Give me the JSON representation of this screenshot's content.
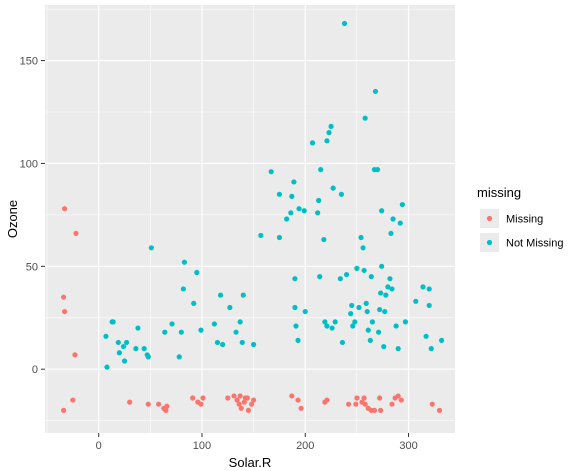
{
  "chart_data": {
    "type": "scatter",
    "xlabel": "Solar.R",
    "ylabel": "Ozone",
    "xlim": [
      -52,
      345
    ],
    "ylim": [
      -31,
      177
    ],
    "x_ticks": [
      0,
      100,
      200,
      300
    ],
    "y_ticks": [
      0,
      50,
      100,
      150
    ],
    "grid": true,
    "panel_background": "#ebebeb",
    "grid_color": "#ffffff",
    "legend": {
      "title": "missing",
      "position": "right"
    },
    "series": [
      {
        "name": "Missing",
        "color": "#F8766D",
        "points": [
          [
            -33,
            78
          ],
          [
            -22,
            66
          ],
          [
            -34,
            35
          ],
          [
            -33,
            28
          ],
          [
            -23,
            7
          ],
          [
            -34,
            -20
          ],
          [
            -25,
            -15
          ],
          [
            30,
            -16
          ],
          [
            48,
            -17
          ],
          [
            58,
            -17
          ],
          [
            63,
            -19
          ],
          [
            65,
            -20
          ],
          [
            66,
            -18
          ],
          [
            91,
            -14
          ],
          [
            96,
            -16
          ],
          [
            99,
            -17
          ],
          [
            101,
            -14
          ],
          [
            125,
            -14
          ],
          [
            131,
            -13
          ],
          [
            134,
            -15
          ],
          [
            136,
            -17
          ],
          [
            137,
            -13
          ],
          [
            138,
            -19
          ],
          [
            141,
            -16
          ],
          [
            142,
            -14
          ],
          [
            144,
            -14
          ],
          [
            145,
            -20
          ],
          [
            148,
            -17
          ],
          [
            150,
            -15
          ],
          [
            187,
            -13
          ],
          [
            193,
            -15
          ],
          [
            196,
            -19
          ],
          [
            219,
            -16
          ],
          [
            221,
            -15
          ],
          [
            242,
            -17
          ],
          [
            249,
            -17
          ],
          [
            250,
            -14
          ],
          [
            255,
            -16
          ],
          [
            257,
            -14
          ],
          [
            258,
            -17
          ],
          [
            261,
            -19
          ],
          [
            264,
            -20
          ],
          [
            267,
            -20
          ],
          [
            272,
            -14
          ],
          [
            273,
            -20
          ],
          [
            284,
            -17
          ],
          [
            287,
            -14
          ],
          [
            290,
            -13
          ],
          [
            293,
            -15
          ],
          [
            323,
            -17
          ],
          [
            330,
            -20
          ]
        ]
      },
      {
        "name": "Not Missing",
        "color": "#00BFC4",
        "points": [
          [
            7,
            16
          ],
          [
            8,
            1
          ],
          [
            13,
            23
          ],
          [
            14,
            23
          ],
          [
            19,
            13
          ],
          [
            20,
            8
          ],
          [
            24,
            11
          ],
          [
            25,
            4
          ],
          [
            27,
            13
          ],
          [
            36,
            10
          ],
          [
            38,
            20
          ],
          [
            44,
            10
          ],
          [
            47,
            7
          ],
          [
            48,
            6
          ],
          [
            51,
            59
          ],
          [
            64,
            18
          ],
          [
            71,
            22
          ],
          [
            78,
            6
          ],
          [
            80,
            18
          ],
          [
            82,
            39
          ],
          [
            83,
            52
          ],
          [
            92,
            32
          ],
          [
            95,
            47
          ],
          [
            99,
            19
          ],
          [
            112,
            22
          ],
          [
            115,
            13
          ],
          [
            118,
            36
          ],
          [
            120,
            12
          ],
          [
            127,
            30
          ],
          [
            133,
            18
          ],
          [
            137,
            23
          ],
          [
            139,
            13
          ],
          [
            140,
            36
          ],
          [
            150,
            12
          ],
          [
            157,
            65
          ],
          [
            167,
            96
          ],
          [
            175,
            85
          ],
          [
            175,
            64
          ],
          [
            182,
            73
          ],
          [
            186,
            76
          ],
          [
            187,
            84
          ],
          [
            189,
            91
          ],
          [
            190,
            44
          ],
          [
            190,
            30
          ],
          [
            191,
            21
          ],
          [
            193,
            14
          ],
          [
            194,
            78
          ],
          [
            199,
            77
          ],
          [
            200,
            28
          ],
          [
            207,
            110
          ],
          [
            212,
            76
          ],
          [
            213,
            82
          ],
          [
            214,
            45
          ],
          [
            215,
            97
          ],
          [
            218,
            63
          ],
          [
            219,
            23
          ],
          [
            221,
            21
          ],
          [
            221,
            111
          ],
          [
            223,
            115
          ],
          [
            225,
            118
          ],
          [
            226,
            20
          ],
          [
            227,
            88
          ],
          [
            229,
            23
          ],
          [
            234,
            44
          ],
          [
            235,
            85
          ],
          [
            236,
            13
          ],
          [
            238,
            168
          ],
          [
            240,
            46
          ],
          [
            244,
            27
          ],
          [
            245,
            31
          ],
          [
            246,
            21
          ],
          [
            248,
            23
          ],
          [
            250,
            49
          ],
          [
            252,
            30
          ],
          [
            254,
            64
          ],
          [
            256,
            59
          ],
          [
            257,
            48
          ],
          [
            258,
            122
          ],
          [
            259,
            32
          ],
          [
            260,
            28
          ],
          [
            261,
            19
          ],
          [
            263,
            14
          ],
          [
            264,
            45
          ],
          [
            265,
            23
          ],
          [
            267,
            97
          ],
          [
            268,
            135
          ],
          [
            270,
            97
          ],
          [
            271,
            18
          ],
          [
            272,
            29
          ],
          [
            273,
            37
          ],
          [
            274,
            50
          ],
          [
            274,
            77
          ],
          [
            276,
            11
          ],
          [
            277,
            28
          ],
          [
            278,
            36
          ],
          [
            280,
            40
          ],
          [
            282,
            44
          ],
          [
            283,
            66
          ],
          [
            284,
            39
          ],
          [
            285,
            73
          ],
          [
            288,
            21
          ],
          [
            290,
            10
          ],
          [
            292,
            71
          ],
          [
            294,
            80
          ],
          [
            297,
            23
          ],
          [
            307,
            33
          ],
          [
            314,
            40
          ],
          [
            317,
            16
          ],
          [
            320,
            39
          ],
          [
            320,
            31
          ],
          [
            322,
            10
          ],
          [
            332,
            14
          ]
        ]
      }
    ]
  }
}
